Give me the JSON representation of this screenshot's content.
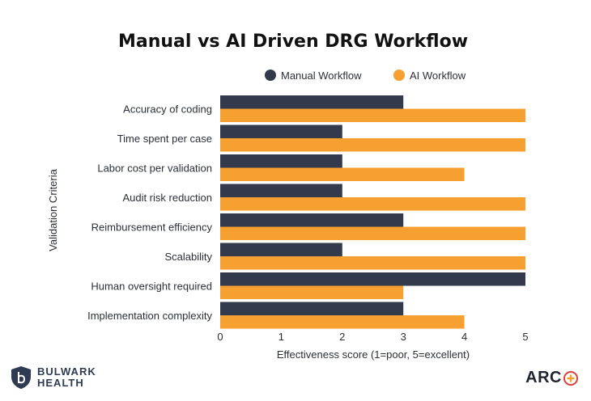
{
  "chart_data": {
    "type": "bar",
    "orientation": "horizontal",
    "title": "Manual vs AI Driven DRG Workflow",
    "xlabel": "Effectiveness score (1=poor, 5=excellent)",
    "ylabel": "Validation Criteria",
    "xlim": [
      0,
      5
    ],
    "xticks": [
      "0",
      "1",
      "2",
      "3",
      "4",
      "5"
    ],
    "legend_position": "top",
    "categories": [
      "Accuracy of coding",
      "Time spent per case",
      "Labor cost per validation",
      "Audit risk reduction",
      "Reimbursement efficiency",
      "Scalability",
      "Human oversight required",
      "Implementation complexity"
    ],
    "series": [
      {
        "name": "Manual Workflow",
        "color": "#323a4b",
        "values": [
          3,
          2,
          2,
          2,
          3,
          2,
          5,
          3
        ]
      },
      {
        "name": "AI Workflow",
        "color": "#f5a031",
        "values": [
          5,
          5,
          4,
          5,
          5,
          5,
          3,
          4
        ]
      }
    ]
  },
  "branding": {
    "left_line1": "BULWARK",
    "left_line2": "HEALTH",
    "right_text": "ARC",
    "left_icon": "shield-b-icon",
    "right_icon": "medical-cross-icon"
  }
}
